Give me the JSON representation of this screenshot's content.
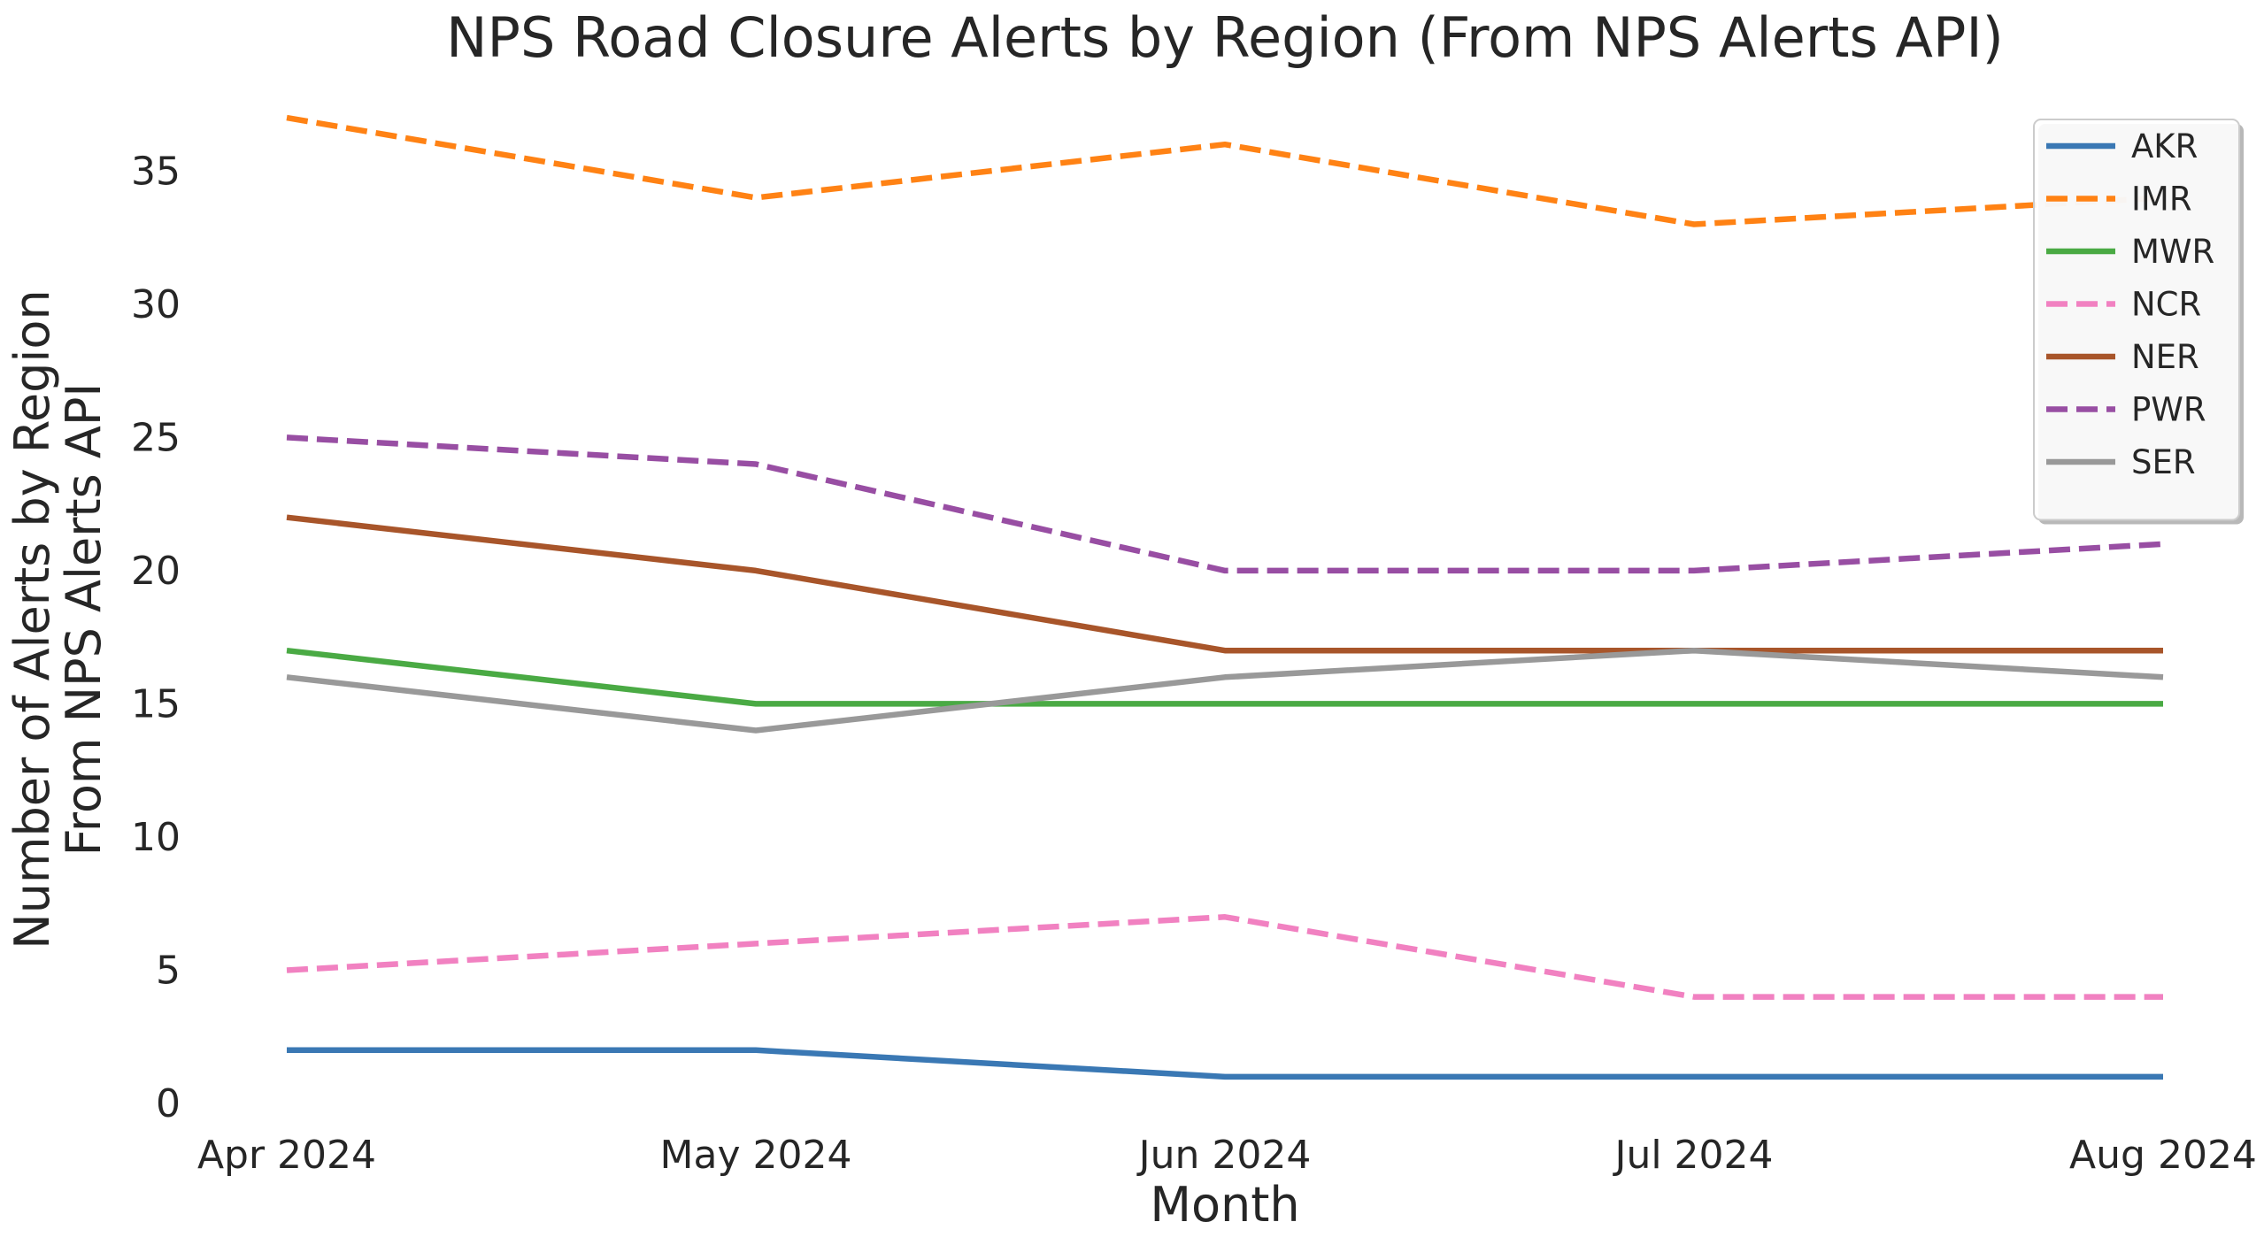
{
  "chart_data": {
    "type": "line",
    "title": "NPS Road Closure Alerts by Region (From NPS Alerts API)",
    "xlabel": "Month",
    "ylabel_lines": [
      "Number of Alerts by Region",
      "From NPS Alerts API"
    ],
    "categories": [
      "Apr 2024",
      "May 2024",
      "Jun 2024",
      "Jul 2024",
      "Aug 2024"
    ],
    "ylim": [
      0,
      38
    ],
    "yticks": [
      "0",
      "5",
      "10",
      "15",
      "20",
      "25",
      "30",
      "35"
    ],
    "grid": false,
    "legend_position": "top-right",
    "series": [
      {
        "name": "AKR",
        "values": [
          2,
          2,
          1,
          1,
          1
        ],
        "color": "#3a78b4",
        "dashed": false
      },
      {
        "name": "IMR",
        "values": [
          37,
          34,
          36,
          33,
          34
        ],
        "color": "#ff8214",
        "dashed": true
      },
      {
        "name": "MWR",
        "values": [
          17,
          15,
          15,
          15,
          15
        ],
        "color": "#4aaa44",
        "dashed": false
      },
      {
        "name": "NCR",
        "values": [
          5,
          6,
          7,
          4,
          4
        ],
        "color": "#f181c1",
        "dashed": true
      },
      {
        "name": "NER",
        "values": [
          22,
          20,
          17,
          17,
          17
        ],
        "color": "#a8552a",
        "dashed": false
      },
      {
        "name": "PWR",
        "values": [
          25,
          24,
          20,
          20,
          21
        ],
        "color": "#984ea3",
        "dashed": true
      },
      {
        "name": "SER",
        "values": [
          16,
          14,
          16,
          17,
          16
        ],
        "color": "#999999",
        "dashed": false
      }
    ]
  }
}
